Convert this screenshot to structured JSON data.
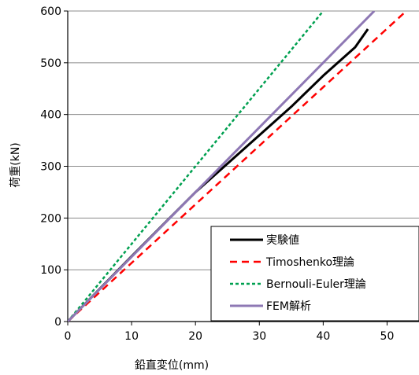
{
  "chart_data": {
    "type": "line",
    "xlabel": "鉛直変位(mm)",
    "ylabel": "荷重(kN)",
    "xlim": [
      0,
      55
    ],
    "ylim": [
      0,
      600
    ],
    "xticks": [
      "0",
      "10",
      "20",
      "30",
      "40",
      "50"
    ],
    "yticks": [
      "0",
      "100",
      "200",
      "300",
      "400",
      "500",
      "600"
    ],
    "grid": "horizontal",
    "legend_position": "bottom-right",
    "series": [
      {
        "name": "実験値",
        "color": "#000000",
        "dash": "solid",
        "points": [
          [
            0,
            0
          ],
          [
            5,
            63
          ],
          [
            10,
            126
          ],
          [
            15,
            188
          ],
          [
            20,
            250
          ],
          [
            25,
            305
          ],
          [
            30,
            360
          ],
          [
            35,
            415
          ],
          [
            40,
            475
          ],
          [
            45,
            530
          ],
          [
            47,
            565
          ]
        ]
      },
      {
        "name": "Timoshenko理論",
        "color": "#ff0000",
        "dash": "dashed",
        "points": [
          [
            0,
            0
          ],
          [
            53,
            600
          ]
        ]
      },
      {
        "name": "Bernouli-Euler理論",
        "color": "#00a050",
        "dash": "dotted",
        "points": [
          [
            0,
            0
          ],
          [
            40,
            600
          ]
        ]
      },
      {
        "name": "FEM解析",
        "color": "#8e78b4",
        "dash": "solid",
        "points": [
          [
            0,
            0
          ],
          [
            48,
            600
          ]
        ]
      }
    ]
  }
}
